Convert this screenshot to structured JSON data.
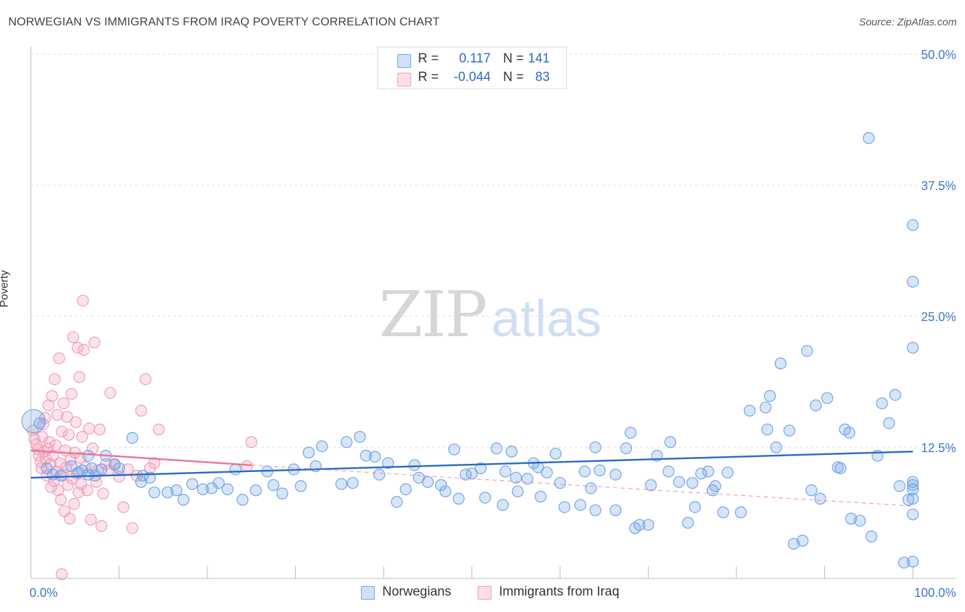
{
  "title": "NORWEGIAN VS IMMIGRANTS FROM IRAQ POVERTY CORRELATION CHART",
  "source": "Source: ZipAtlas.com",
  "watermark": {
    "zip": "ZIP",
    "atlas": "atlas"
  },
  "legend": {
    "rows": [
      {
        "r_label": "R =",
        "r_value": "0.117",
        "n_label": "N =",
        "n_value": "141",
        "color": "#6fa3e6"
      },
      {
        "r_label": "R =",
        "r_value": "-0.044",
        "n_label": "N =",
        "n_value": "83",
        "color": "#f29bb8"
      }
    ]
  },
  "bottom_legend": {
    "series1": "Norwegians",
    "series2": "Immigrants from Iraq"
  },
  "chart_data": {
    "type": "scatter",
    "title": "NORWEGIAN VS IMMIGRANTS FROM IRAQ POVERTY CORRELATION CHART",
    "xlabel": "",
    "ylabel": "Poverty",
    "xlim": [
      0,
      100
    ],
    "ylim": [
      0,
      50
    ],
    "x_tick_labels": [
      "0.0%",
      "100.0%"
    ],
    "y_tick_labels": [
      "12.5%",
      "25.0%",
      "37.5%",
      "50.0%"
    ],
    "y_ticks": [
      12.5,
      25.0,
      37.5,
      50.0
    ],
    "grid": "horizontal dashed",
    "legend_position": "top-center",
    "colors": {
      "series1": "#6fa3e6",
      "series2": "#f29bb8",
      "trend1": "#2a6bc7",
      "trend2": "#e8759b"
    },
    "series": [
      {
        "name": "Norwegians",
        "trend": {
          "x": [
            0,
            100
          ],
          "y": [
            9.6,
            12.1
          ]
        },
        "points": [
          [
            0.3,
            15
          ],
          [
            1.0,
            14.8
          ],
          [
            1.8,
            10.5
          ],
          [
            2.5,
            9.9
          ],
          [
            3.4,
            9.8
          ],
          [
            4.6,
            10.7
          ],
          [
            5.4,
            10.1
          ],
          [
            6.5,
            9.9
          ],
          [
            7.3,
            9.8
          ],
          [
            5.8,
            10.3
          ],
          [
            6.9,
            10.5
          ],
          [
            8.0,
            10.4
          ],
          [
            6.5,
            11.7
          ],
          [
            8.5,
            11.7
          ],
          [
            10.0,
            10.5
          ],
          [
            9.5,
            10.9
          ],
          [
            11.5,
            13.4
          ],
          [
            12.5,
            9.2
          ],
          [
            13.5,
            9.6
          ],
          [
            12.7,
            9.8
          ],
          [
            14.0,
            8.2
          ],
          [
            15.5,
            8.2
          ],
          [
            16.5,
            8.4
          ],
          [
            17.3,
            7.5
          ],
          [
            18.3,
            9.0
          ],
          [
            19.5,
            8.5
          ],
          [
            20.5,
            8.6
          ],
          [
            21.3,
            9.1
          ],
          [
            22.3,
            8.5
          ],
          [
            23.2,
            10.4
          ],
          [
            24.0,
            7.5
          ],
          [
            25.5,
            8.4
          ],
          [
            26.8,
            10.2
          ],
          [
            27.5,
            8.9
          ],
          [
            28.5,
            8.1
          ],
          [
            29.8,
            10.4
          ],
          [
            30.6,
            8.8
          ],
          [
            31.5,
            12.0
          ],
          [
            32.3,
            10.7
          ],
          [
            33.0,
            12.6
          ],
          [
            35.2,
            9.0
          ],
          [
            35.8,
            13.0
          ],
          [
            36.5,
            9.1
          ],
          [
            37.3,
            13.5
          ],
          [
            38.0,
            11.7
          ],
          [
            39.0,
            11.6
          ],
          [
            39.5,
            9.9
          ],
          [
            40.5,
            11.0
          ],
          [
            42.5,
            8.5
          ],
          [
            41.5,
            7.3
          ],
          [
            43.5,
            10.8
          ],
          [
            44.0,
            9.6
          ],
          [
            45.0,
            9.2
          ],
          [
            46.5,
            8.9
          ],
          [
            47.0,
            8.3
          ],
          [
            48.0,
            12.3
          ],
          [
            48.5,
            7.6
          ],
          [
            49.3,
            9.9
          ],
          [
            50.0,
            10.0
          ],
          [
            51.0,
            10.5
          ],
          [
            51.5,
            7.7
          ],
          [
            52.8,
            12.4
          ],
          [
            53.5,
            7.0
          ],
          [
            53.8,
            10.2
          ],
          [
            54.5,
            12.1
          ],
          [
            55.2,
            8.3
          ],
          [
            55.0,
            9.6
          ],
          [
            56.3,
            9.5
          ],
          [
            57.0,
            11.0
          ],
          [
            57.5,
            10.6
          ],
          [
            57.8,
            7.8
          ],
          [
            58.5,
            10.1
          ],
          [
            59.5,
            11.9
          ],
          [
            60.0,
            9.1
          ],
          [
            60.5,
            6.8
          ],
          [
            62.3,
            7.0
          ],
          [
            62.8,
            10.2
          ],
          [
            63.5,
            8.6
          ],
          [
            64.0,
            12.5
          ],
          [
            64.5,
            10.3
          ],
          [
            64.0,
            6.5
          ],
          [
            66.3,
            9.9
          ],
          [
            66.3,
            6.5
          ],
          [
            67.5,
            12.4
          ],
          [
            68.0,
            13.9
          ],
          [
            68.5,
            4.8
          ],
          [
            69.0,
            5.1
          ],
          [
            70.0,
            5.1
          ],
          [
            70.3,
            8.9
          ],
          [
            71.0,
            11.7
          ],
          [
            72.3,
            10.2
          ],
          [
            72.5,
            13.0
          ],
          [
            73.5,
            9.2
          ],
          [
            74.5,
            5.3
          ],
          [
            75.0,
            9.1
          ],
          [
            75.3,
            6.8
          ],
          [
            76.0,
            10.0
          ],
          [
            76.8,
            10.2
          ],
          [
            77.3,
            8.4
          ],
          [
            77.6,
            8.8
          ],
          [
            78.5,
            6.3
          ],
          [
            79.0,
            10.1
          ],
          [
            80.5,
            6.3
          ],
          [
            81.5,
            16.0
          ],
          [
            83.3,
            16.3
          ],
          [
            83.5,
            14.2
          ],
          [
            83.8,
            17.4
          ],
          [
            84.5,
            12.5
          ],
          [
            85.0,
            20.5
          ],
          [
            86.0,
            14.1
          ],
          [
            86.5,
            3.3
          ],
          [
            87.5,
            3.6
          ],
          [
            88.0,
            21.7
          ],
          [
            88.5,
            8.4
          ],
          [
            89.0,
            16.5
          ],
          [
            89.5,
            7.6
          ],
          [
            90.3,
            17.2
          ],
          [
            91.5,
            10.6
          ],
          [
            91.8,
            10.5
          ],
          [
            92.3,
            14.2
          ],
          [
            92.8,
            13.9
          ],
          [
            93.0,
            5.7
          ],
          [
            94.0,
            5.5
          ],
          [
            95.0,
            42
          ],
          [
            95.3,
            4.0
          ],
          [
            96.0,
            11.7
          ],
          [
            96.5,
            16.7
          ],
          [
            97.3,
            14.8
          ],
          [
            98.0,
            17.5
          ],
          [
            98.5,
            8.8
          ],
          [
            99.0,
            1.5
          ],
          [
            99.5,
            7.5
          ],
          [
            100,
            33.7
          ],
          [
            100,
            8.9
          ],
          [
            100,
            9.2
          ],
          [
            100,
            8.5
          ],
          [
            100,
            7.6
          ],
          [
            100,
            6.1
          ],
          [
            100,
            1.6
          ],
          [
            100,
            22.0
          ],
          [
            100,
            28.3
          ]
        ]
      },
      {
        "name": "Immigrants from Iraq",
        "trend": {
          "x": [
            0,
            25
          ],
          "y": [
            12.2,
            10.8
          ]
        },
        "trend_extrapolated": {
          "x": [
            25,
            100
          ],
          "y": [
            10.8,
            6.9
          ]
        },
        "points": [
          [
            0.2,
            14.1
          ],
          [
            0.4,
            13.3
          ],
          [
            0.6,
            12.8
          ],
          [
            0.8,
            12.3
          ],
          [
            0.9,
            11.7
          ],
          [
            1.1,
            11.1
          ],
          [
            1.2,
            10.5
          ],
          [
            1.3,
            13.5
          ],
          [
            1.4,
            14.7
          ],
          [
            1.5,
            12.1
          ],
          [
            1.6,
            15.3
          ],
          [
            1.7,
            11.4
          ],
          [
            1.8,
            9.8
          ],
          [
            1.9,
            12.4
          ],
          [
            2.0,
            16.5
          ],
          [
            2.1,
            13.0
          ],
          [
            2.2,
            10.9
          ],
          [
            2.3,
            8.7
          ],
          [
            2.4,
            17.4
          ],
          [
            2.5,
            11.7
          ],
          [
            2.6,
            9.3
          ],
          [
            2.7,
            19.0
          ],
          [
            2.8,
            12.7
          ],
          [
            2.9,
            10.2
          ],
          [
            3.0,
            15.6
          ],
          [
            3.1,
            8.4
          ],
          [
            3.2,
            21.0
          ],
          [
            3.3,
            11.0
          ],
          [
            3.4,
            7.5
          ],
          [
            3.5,
            14.0
          ],
          [
            3.6,
            9.9
          ],
          [
            3.7,
            16.7
          ],
          [
            3.8,
            6.4
          ],
          [
            3.9,
            12.2
          ],
          [
            4.0,
            10.6
          ],
          [
            4.1,
            15.4
          ],
          [
            4.2,
            8.9
          ],
          [
            4.3,
            13.7
          ],
          [
            4.4,
            5.7
          ],
          [
            4.5,
            11.3
          ],
          [
            4.6,
            17.6
          ],
          [
            4.7,
            9.5
          ],
          [
            4.8,
            23.0
          ],
          [
            4.9,
            7.1
          ],
          [
            5.0,
            12.0
          ],
          [
            5.1,
            14.9
          ],
          [
            5.2,
            10.0
          ],
          [
            5.3,
            22.0
          ],
          [
            5.4,
            8.2
          ],
          [
            5.5,
            19.2
          ],
          [
            5.6,
            11.5
          ],
          [
            5.7,
            9.0
          ],
          [
            5.8,
            13.5
          ],
          [
            5.9,
            26.5
          ],
          [
            6.0,
            21.8
          ],
          [
            6.2,
            10.6
          ],
          [
            6.4,
            8.4
          ],
          [
            6.6,
            14.3
          ],
          [
            6.8,
            5.6
          ],
          [
            7.0,
            12.4
          ],
          [
            7.2,
            22.5
          ],
          [
            7.4,
            9.2
          ],
          [
            7.6,
            10.3
          ],
          [
            7.8,
            14.2
          ],
          [
            8.0,
            5.0
          ],
          [
            8.2,
            8.1
          ],
          [
            8.5,
            10.9
          ],
          [
            8.8,
            10.3
          ],
          [
            9.0,
            17.7
          ],
          [
            9.5,
            10.8
          ],
          [
            10.0,
            9.7
          ],
          [
            10.5,
            6.8
          ],
          [
            11.0,
            10.4
          ],
          [
            11.5,
            4.8
          ],
          [
            12.0,
            9.8
          ],
          [
            12.5,
            16.0
          ],
          [
            13.0,
            19.0
          ],
          [
            13.5,
            10.5
          ],
          [
            14.0,
            11.0
          ],
          [
            14.5,
            14.2
          ],
          [
            24.5,
            10.7
          ],
          [
            25.0,
            13.0
          ],
          [
            3.5,
            0.4
          ]
        ]
      }
    ]
  }
}
